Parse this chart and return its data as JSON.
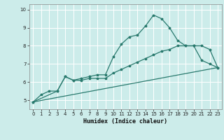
{
  "xlabel": "Humidex (Indice chaleur)",
  "ylabel": "",
  "bg_color": "#ccecea",
  "grid_color": "#ffffff",
  "line_color": "#2a7a6e",
  "xlim": [
    -0.5,
    23.5
  ],
  "ylim": [
    4.5,
    10.3
  ],
  "xticks": [
    0,
    1,
    2,
    3,
    4,
    5,
    6,
    7,
    8,
    9,
    10,
    11,
    12,
    13,
    14,
    15,
    16,
    17,
    18,
    19,
    20,
    21,
    22,
    23
  ],
  "yticks": [
    5,
    6,
    7,
    8,
    9,
    10
  ],
  "line1_x": [
    0,
    1,
    2,
    3,
    4,
    5,
    6,
    7,
    8,
    9,
    10,
    11,
    12,
    13,
    14,
    15,
    16,
    17,
    18,
    19,
    20,
    21,
    22,
    23
  ],
  "line1_y": [
    4.9,
    5.3,
    5.5,
    5.5,
    6.3,
    6.1,
    6.2,
    6.3,
    6.4,
    6.4,
    7.4,
    8.1,
    8.5,
    8.6,
    9.1,
    9.7,
    9.5,
    9.0,
    8.3,
    8.0,
    8.0,
    7.2,
    7.0,
    6.8
  ],
  "line2_x": [
    0,
    3,
    4,
    5,
    6,
    7,
    8,
    9,
    10,
    11,
    12,
    13,
    14,
    15,
    16,
    17,
    18,
    19,
    20,
    21,
    22,
    23
  ],
  "line2_y": [
    4.9,
    5.5,
    6.3,
    6.1,
    6.1,
    6.2,
    6.2,
    6.2,
    6.5,
    6.7,
    6.9,
    7.1,
    7.3,
    7.5,
    7.7,
    7.8,
    8.0,
    8.0,
    8.0,
    8.0,
    7.8,
    6.8
  ],
  "line3_x": [
    0,
    23
  ],
  "line3_y": [
    4.9,
    6.8
  ]
}
